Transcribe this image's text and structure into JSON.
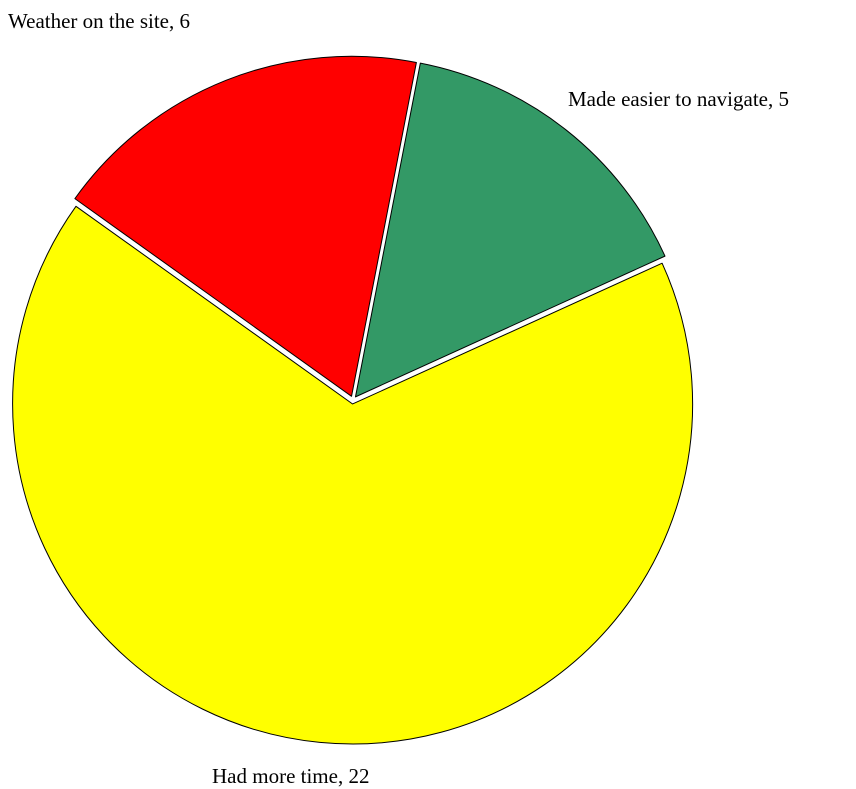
{
  "chart_data": {
    "type": "pie",
    "title": "",
    "slices": [
      {
        "label": "Made easier to navigate, 5",
        "value": 5,
        "color": "#339966"
      },
      {
        "label": "Had more time, 22",
        "value": 22,
        "color": "#ffff00"
      },
      {
        "label": "Weather on the site, 6",
        "value": 6,
        "color": "#ff0000"
      }
    ],
    "start_angle_deg": 11,
    "direction": "clockwise",
    "exploded": true
  }
}
